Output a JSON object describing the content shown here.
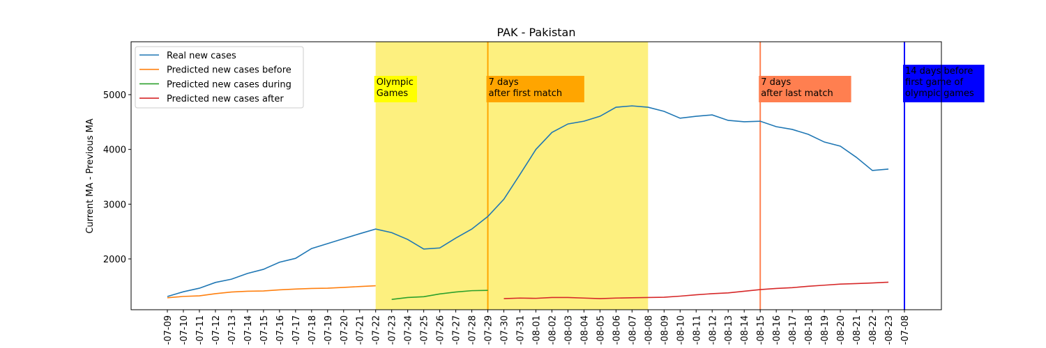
{
  "chart_data": {
    "type": "line",
    "title": "PAK - Pakistan",
    "y_label": "Current MA - Previous MA",
    "categories": [
      "-07-09",
      "-07-10",
      "-07-11",
      "-07-12",
      "-07-13",
      "-07-14",
      "-07-15",
      "-07-16",
      "-07-17",
      "-07-18",
      "-07-19",
      "-07-20",
      "-07-21",
      "-07-22",
      "-07-23",
      "-07-24",
      "-07-25",
      "-07-26",
      "-07-27",
      "-07-28",
      "-07-29",
      "-07-30",
      "-07-31",
      "-08-01",
      "-08-02",
      "-08-03",
      "-08-04",
      "-08-05",
      "-08-06",
      "-08-07",
      "-08-08",
      "-08-09",
      "-08-10",
      "-08-11",
      "-08-12",
      "-08-13",
      "-08-14",
      "-08-15",
      "-08-16",
      "-08-17",
      "-08-18",
      "-08-19",
      "-08-20",
      "-08-21",
      "-08-22",
      "-08-23",
      "-07-08"
    ],
    "series": [
      {
        "name": "Real new cases",
        "color": "#1f77b4",
        "values": [
          1314,
          1400,
          1465,
          1570,
          1630,
          1735,
          1810,
          1940,
          2010,
          2190,
          2280,
          2370,
          2460,
          2545,
          2480,
          2355,
          2180,
          2200,
          2380,
          2545,
          2775,
          3090,
          3540,
          4000,
          4310,
          4465,
          4515,
          4605,
          4770,
          4795,
          4770,
          4695,
          4570,
          4605,
          4630,
          4530,
          4505,
          4515,
          4415,
          4365,
          4275,
          4135,
          4060,
          3855,
          3615,
          3640,
          null
        ]
      },
      {
        "name": "Predicted new cases before",
        "color": "#ff7f0e",
        "values": [
          1290,
          1315,
          1325,
          1365,
          1395,
          1410,
          1415,
          1435,
          1450,
          1460,
          1465,
          1480,
          1495,
          1510,
          null,
          null,
          null,
          null,
          null,
          null,
          null,
          null,
          null,
          null,
          null,
          null,
          null,
          null,
          null,
          null,
          null,
          null,
          null,
          null,
          null,
          null,
          null,
          null,
          null,
          null,
          null,
          null,
          null,
          null,
          null,
          null,
          null
        ]
      },
      {
        "name": "Predicted new cases during",
        "color": "#2ca02c",
        "values": [
          null,
          null,
          null,
          null,
          null,
          null,
          null,
          null,
          null,
          null,
          null,
          null,
          null,
          null,
          1260,
          1295,
          1310,
          1360,
          1395,
          1420,
          1425,
          null,
          null,
          null,
          null,
          null,
          null,
          null,
          null,
          null,
          null,
          null,
          null,
          null,
          null,
          null,
          null,
          null,
          null,
          null,
          null,
          null,
          null,
          null,
          null,
          null,
          null
        ]
      },
      {
        "name": "Predicted new cases after",
        "color": "#d62728",
        "values": [
          null,
          null,
          null,
          null,
          null,
          null,
          null,
          null,
          null,
          null,
          null,
          null,
          null,
          null,
          null,
          null,
          null,
          null,
          null,
          null,
          null,
          1275,
          1285,
          1280,
          1295,
          1295,
          1285,
          1275,
          1285,
          1290,
          1295,
          1300,
          1320,
          1345,
          1365,
          1380,
          1410,
          1440,
          1460,
          1475,
          1500,
          1520,
          1540,
          1550,
          1560,
          1575,
          null
        ]
      }
    ],
    "ylim": [
      1072,
      5966
    ],
    "yticks": [
      2000,
      3000,
      4000,
      5000
    ],
    "legend": "upper left",
    "span": {
      "from": "-07-22",
      "to": "-08-08",
      "color": "#fdf07f",
      "label": [
        "Olympic",
        "Games"
      ],
      "box": "#ffff00",
      "text_color": "#000000"
    },
    "vlines": [
      {
        "x": "-07-29",
        "color": "#ffa500",
        "label": [
          "7 days",
          "after first match"
        ],
        "box": "#ffa500",
        "text_color": "#000000"
      },
      {
        "x": "-08-15",
        "color": "#ff7f50",
        "label": [
          "7 days",
          "after last match"
        ],
        "box": "#ff7f50",
        "text_color": "#000000"
      },
      {
        "x": "-07-08",
        "color": "#0000ff",
        "label": [
          "14 days before",
          "first game of",
          "olympic games"
        ],
        "box": "#0000ff",
        "text_color": "#ffffff"
      }
    ]
  }
}
